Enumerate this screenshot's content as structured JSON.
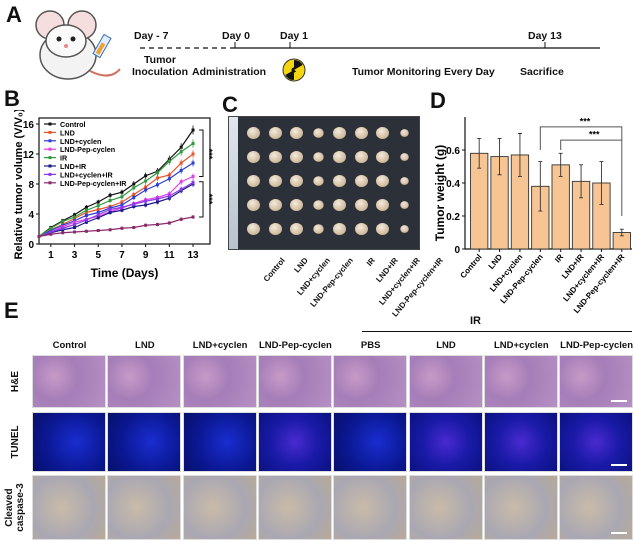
{
  "panel_labels": {
    "a": "A",
    "b": "B",
    "c": "C",
    "d": "D",
    "e": "E"
  },
  "timeline": {
    "days": [
      "Day - 7",
      "Day 0",
      "Day 1",
      "Day 13"
    ],
    "events": [
      "Tumor\nInoculation",
      "Administration",
      "Tumor Monitoring Every Day",
      "Sacrifice"
    ],
    "icons": [
      "mouse-with-syringe-icon",
      "radiation-icon"
    ]
  },
  "chart_data": [
    {
      "type": "line",
      "xlabel": "Time (Days)",
      "ylabel": "Relative tumor volume (V/V₀)",
      "xlim": [
        0,
        14
      ],
      "ylim": [
        0,
        16
      ],
      "xticks": [
        1,
        3,
        5,
        7,
        9,
        11,
        13
      ],
      "yticks": [
        0,
        4,
        8,
        12,
        16
      ],
      "legend_position": "top-left",
      "x": [
        0,
        1,
        2,
        3,
        4,
        5,
        6,
        7,
        8,
        9,
        10,
        11,
        12,
        13
      ],
      "series": [
        {
          "name": "Control",
          "color": "#111111",
          "values": [
            1,
            2.2,
            3.1,
            3.9,
            4.9,
            5.6,
            6.5,
            6.9,
            8.0,
            9.1,
            9.7,
            11.3,
            12.9,
            15.2
          ]
        },
        {
          "name": "LND",
          "color": "#e8542a",
          "values": [
            1,
            1.9,
            2.6,
            3.4,
            4.2,
            4.6,
            5.0,
            5.6,
            6.6,
            7.6,
            8.8,
            9.2,
            10.8,
            12.0
          ]
        },
        {
          "name": "LND+cyclen",
          "color": "#2a3fd6",
          "values": [
            1,
            1.8,
            2.5,
            3.1,
            3.8,
            4.2,
            4.8,
            5.2,
            6.2,
            7.2,
            7.9,
            8.7,
            9.8,
            10.8
          ]
        },
        {
          "name": "LND-Pep-cyclen",
          "color": "#e040e8",
          "values": [
            1,
            1.6,
            2.3,
            2.9,
            3.3,
            3.7,
            4.3,
            4.8,
            5.4,
            5.9,
            6.2,
            6.7,
            8.3,
            9.0
          ]
        },
        {
          "name": "IR",
          "color": "#2e9a3a",
          "values": [
            1,
            2.1,
            3.0,
            3.6,
            4.5,
            5.1,
            5.8,
            6.3,
            7.5,
            8.4,
            9.5,
            11.0,
            12.3,
            13.4
          ]
        },
        {
          "name": "LND+IR",
          "color": "#1a1a8a",
          "values": [
            1,
            1.5,
            1.9,
            2.2,
            2.9,
            3.5,
            4.2,
            4.5,
            5.0,
            5.2,
            5.6,
            6.1,
            7.1,
            8.0
          ]
        },
        {
          "name": "LND+cyclen+IR",
          "color": "#8a3ae8",
          "values": [
            1,
            1.6,
            2.1,
            2.6,
            3.2,
            3.9,
            4.6,
            4.9,
            5.3,
            5.7,
            6.0,
            6.4,
            7.3,
            8.2
          ]
        },
        {
          "name": "LND-Pep-cyclen+IR",
          "color": "#8a2a6a",
          "values": [
            1,
            1.3,
            1.5,
            1.6,
            1.7,
            1.8,
            1.9,
            2.1,
            2.2,
            2.5,
            2.6,
            2.8,
            3.3,
            3.6
          ]
        }
      ],
      "annotations": [
        "***",
        "***"
      ]
    },
    {
      "type": "bar",
      "ylabel": "Tumor  weight (g)",
      "ylim": [
        0,
        0.8
      ],
      "yticks": [
        0,
        0.2,
        0.4,
        0.6
      ],
      "bar_color": "#f7c593",
      "categories": [
        "Control",
        "LND",
        "LND+cyclen",
        "LND-Pep-cyclen",
        "IR",
        "LND+IR",
        "LND+cyclen+IR",
        "LND-Pep-cyclen+IR"
      ],
      "values": [
        0.58,
        0.56,
        0.57,
        0.38,
        0.51,
        0.41,
        0.4,
        0.1
      ],
      "errors": [
        0.09,
        0.11,
        0.13,
        0.15,
        0.07,
        0.1,
        0.13,
        0.02
      ],
      "annotations": [
        "***",
        "***"
      ]
    }
  ],
  "panel_c": {
    "labels": [
      "Control",
      "LND",
      "LND+cyclen",
      "LND-Pep-cyclen",
      "IR",
      "LND+IR",
      "LND+cyclen+IR",
      "LND-Pep-cyclen+IR"
    ]
  },
  "panel_e": {
    "ir_header": "IR",
    "columns": [
      "Control",
      "LND",
      "LND+cyclen",
      "LND-Pep-cyclen",
      "PBS",
      "LND",
      "LND+cyclen",
      "LND-Pep-cyclen"
    ],
    "rows": [
      "H&E",
      "TUNEL",
      "Cleaved\ncaspase-3"
    ]
  }
}
